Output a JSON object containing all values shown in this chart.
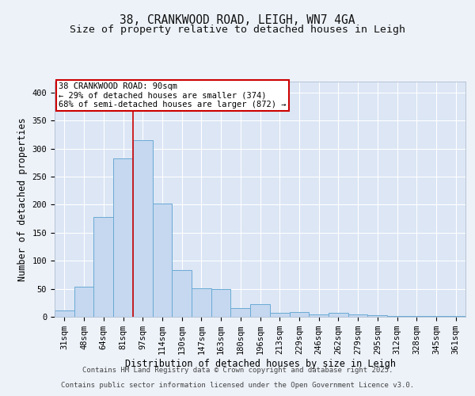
{
  "title_line1": "38, CRANKWOOD ROAD, LEIGH, WN7 4GA",
  "title_line2": "Size of property relative to detached houses in Leigh",
  "xlabel": "Distribution of detached houses by size in Leigh",
  "ylabel": "Number of detached properties",
  "categories": [
    "31sqm",
    "48sqm",
    "64sqm",
    "81sqm",
    "97sqm",
    "114sqm",
    "130sqm",
    "147sqm",
    "163sqm",
    "180sqm",
    "196sqm",
    "213sqm",
    "229sqm",
    "246sqm",
    "262sqm",
    "279sqm",
    "295sqm",
    "312sqm",
    "328sqm",
    "345sqm",
    "361sqm"
  ],
  "values": [
    11,
    54,
    178,
    282,
    315,
    202,
    84,
    51,
    50,
    15,
    22,
    7,
    8,
    4,
    7,
    4,
    3,
    2,
    1,
    1,
    1
  ],
  "bar_color": "#c5d8f0",
  "bar_edge_color": "#6aaad4",
  "annotation_text": "38 CRANKWOOD ROAD: 90sqm\n← 29% of detached houses are smaller (374)\n68% of semi-detached houses are larger (872) →",
  "annotation_box_color": "#ffffff",
  "annotation_box_edge_color": "#cc0000",
  "background_color": "#edf2f9",
  "plot_bg_color": "#dce6f5",
  "grid_color": "#ffffff",
  "ylim": [
    0,
    420
  ],
  "yticks": [
    0,
    50,
    100,
    150,
    200,
    250,
    300,
    350,
    400
  ],
  "footer_line1": "Contains HM Land Registry data © Crown copyright and database right 2025.",
  "footer_line2": "Contains public sector information licensed under the Open Government Licence v3.0.",
  "title_fontsize": 10.5,
  "subtitle_fontsize": 9.5,
  "axis_label_fontsize": 8.5,
  "tick_fontsize": 7.5,
  "annotation_fontsize": 7.5,
  "footer_fontsize": 6.5,
  "vline_x_index": 3.5,
  "vline_color": "#cc0000"
}
